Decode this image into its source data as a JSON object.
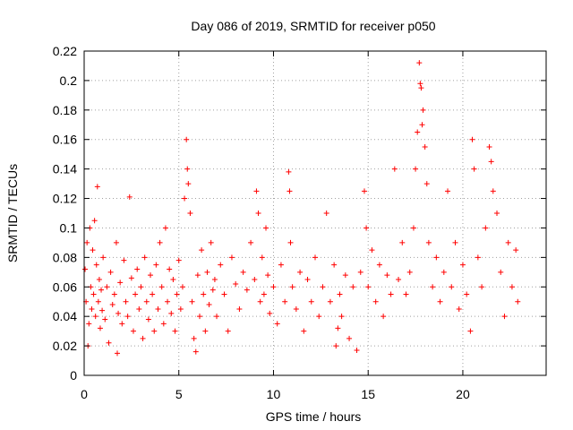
{
  "chart_data": {
    "type": "scatter",
    "title": "Day 086 of 2019, SRMTID for receiver p050",
    "xlabel": "GPS time / hours",
    "ylabel": "SRMTID / TECUs",
    "xlim": [
      0,
      24.4
    ],
    "ylim": [
      0,
      0.22
    ],
    "xticks": [
      0,
      5,
      10,
      15,
      20
    ],
    "xtick_labels": [
      "0",
      "5",
      "10",
      "15",
      "20"
    ],
    "yticks": [
      0,
      0.02,
      0.04,
      0.06,
      0.08,
      0.1,
      0.12,
      0.14,
      0.16,
      0.18,
      0.2,
      0.22
    ],
    "ytick_labels": [
      "0",
      "0.02",
      "0.04",
      "0.06",
      "0.08",
      "0.1",
      "0.12",
      "0.14",
      "0.16",
      "0.18",
      "0.2",
      "0.22"
    ],
    "grid": true,
    "marker": "plus",
    "color": "#ff0000",
    "series": [
      {
        "name": "SRMTID",
        "points": [
          [
            0.05,
            0.072
          ],
          [
            0.1,
            0.05
          ],
          [
            0.15,
            0.09
          ],
          [
            0.2,
            0.02
          ],
          [
            0.25,
            0.035
          ],
          [
            0.3,
            0.1
          ],
          [
            0.35,
            0.06
          ],
          [
            0.4,
            0.045
          ],
          [
            0.45,
            0.085
          ],
          [
            0.5,
            0.055
          ],
          [
            0.55,
            0.105
          ],
          [
            0.6,
            0.04
          ],
          [
            0.65,
            0.075
          ],
          [
            0.7,
            0.128
          ],
          [
            0.75,
            0.05
          ],
          [
            0.8,
            0.065
          ],
          [
            0.85,
            0.032
          ],
          [
            0.9,
            0.058
          ],
          [
            0.95,
            0.044
          ],
          [
            1.0,
            0.08
          ],
          [
            1.1,
            0.038
          ],
          [
            1.2,
            0.06
          ],
          [
            1.3,
            0.022
          ],
          [
            1.4,
            0.07
          ],
          [
            1.5,
            0.048
          ],
          [
            1.6,
            0.055
          ],
          [
            1.7,
            0.09
          ],
          [
            1.75,
            0.015
          ],
          [
            1.8,
            0.042
          ],
          [
            1.9,
            0.063
          ],
          [
            2.0,
            0.035
          ],
          [
            2.1,
            0.078
          ],
          [
            2.2,
            0.05
          ],
          [
            2.3,
            0.04
          ],
          [
            2.4,
            0.121
          ],
          [
            2.5,
            0.066
          ],
          [
            2.6,
            0.03
          ],
          [
            2.7,
            0.055
          ],
          [
            2.8,
            0.072
          ],
          [
            2.9,
            0.045
          ],
          [
            3.0,
            0.06
          ],
          [
            3.1,
            0.025
          ],
          [
            3.2,
            0.08
          ],
          [
            3.3,
            0.05
          ],
          [
            3.4,
            0.038
          ],
          [
            3.5,
            0.068
          ],
          [
            3.6,
            0.055
          ],
          [
            3.7,
            0.03
          ],
          [
            3.8,
            0.075
          ],
          [
            3.9,
            0.045
          ],
          [
            4.0,
            0.09
          ],
          [
            4.1,
            0.06
          ],
          [
            4.2,
            0.035
          ],
          [
            4.3,
            0.1
          ],
          [
            4.4,
            0.05
          ],
          [
            4.5,
            0.072
          ],
          [
            4.6,
            0.042
          ],
          [
            4.7,
            0.065
          ],
          [
            4.8,
            0.03
          ],
          [
            4.9,
            0.055
          ],
          [
            5.0,
            0.078
          ],
          [
            5.1,
            0.045
          ],
          [
            5.2,
            0.06
          ],
          [
            5.3,
            0.12
          ],
          [
            5.4,
            0.16
          ],
          [
            5.45,
            0.14
          ],
          [
            5.5,
            0.13
          ],
          [
            5.6,
            0.11
          ],
          [
            5.7,
            0.05
          ],
          [
            5.8,
            0.025
          ],
          [
            5.9,
            0.016
          ],
          [
            6.0,
            0.068
          ],
          [
            6.1,
            0.04
          ],
          [
            6.2,
            0.085
          ],
          [
            6.3,
            0.055
          ],
          [
            6.4,
            0.03
          ],
          [
            6.5,
            0.07
          ],
          [
            6.6,
            0.048
          ],
          [
            6.7,
            0.09
          ],
          [
            6.8,
            0.058
          ],
          [
            6.9,
            0.065
          ],
          [
            7.0,
            0.04
          ],
          [
            7.2,
            0.075
          ],
          [
            7.4,
            0.055
          ],
          [
            7.6,
            0.03
          ],
          [
            7.8,
            0.08
          ],
          [
            8.0,
            0.062
          ],
          [
            8.2,
            0.045
          ],
          [
            8.4,
            0.07
          ],
          [
            8.6,
            0.058
          ],
          [
            8.8,
            0.09
          ],
          [
            9.0,
            0.065
          ],
          [
            9.1,
            0.125
          ],
          [
            9.2,
            0.11
          ],
          [
            9.3,
            0.05
          ],
          [
            9.4,
            0.08
          ],
          [
            9.5,
            0.055
          ],
          [
            9.6,
            0.1
          ],
          [
            9.7,
            0.068
          ],
          [
            9.8,
            0.042
          ],
          [
            10.0,
            0.06
          ],
          [
            10.2,
            0.035
          ],
          [
            10.4,
            0.075
          ],
          [
            10.6,
            0.05
          ],
          [
            10.8,
            0.138
          ],
          [
            10.85,
            0.125
          ],
          [
            10.9,
            0.09
          ],
          [
            11.0,
            0.06
          ],
          [
            11.2,
            0.045
          ],
          [
            11.4,
            0.07
          ],
          [
            11.6,
            0.03
          ],
          [
            11.8,
            0.065
          ],
          [
            12.0,
            0.05
          ],
          [
            12.2,
            0.08
          ],
          [
            12.4,
            0.04
          ],
          [
            12.6,
            0.06
          ],
          [
            12.8,
            0.11
          ],
          [
            13.0,
            0.05
          ],
          [
            13.2,
            0.075
          ],
          [
            13.3,
            0.02
          ],
          [
            13.4,
            0.032
          ],
          [
            13.5,
            0.055
          ],
          [
            13.6,
            0.04
          ],
          [
            13.8,
            0.068
          ],
          [
            14.0,
            0.025
          ],
          [
            14.2,
            0.06
          ],
          [
            14.4,
            0.017
          ],
          [
            14.6,
            0.07
          ],
          [
            14.8,
            0.125
          ],
          [
            14.9,
            0.1
          ],
          [
            15.0,
            0.06
          ],
          [
            15.2,
            0.085
          ],
          [
            15.4,
            0.05
          ],
          [
            15.6,
            0.075
          ],
          [
            15.8,
            0.04
          ],
          [
            16.0,
            0.068
          ],
          [
            16.2,
            0.055
          ],
          [
            16.4,
            0.14
          ],
          [
            16.6,
            0.065
          ],
          [
            16.8,
            0.09
          ],
          [
            17.0,
            0.055
          ],
          [
            17.2,
            0.07
          ],
          [
            17.4,
            0.1
          ],
          [
            17.5,
            0.14
          ],
          [
            17.6,
            0.165
          ],
          [
            17.7,
            0.212
          ],
          [
            17.75,
            0.198
          ],
          [
            17.8,
            0.195
          ],
          [
            17.85,
            0.17
          ],
          [
            17.9,
            0.18
          ],
          [
            18.0,
            0.155
          ],
          [
            18.1,
            0.13
          ],
          [
            18.2,
            0.09
          ],
          [
            18.4,
            0.06
          ],
          [
            18.6,
            0.08
          ],
          [
            18.8,
            0.05
          ],
          [
            19.0,
            0.07
          ],
          [
            19.2,
            0.125
          ],
          [
            19.4,
            0.06
          ],
          [
            19.6,
            0.09
          ],
          [
            19.8,
            0.045
          ],
          [
            20.0,
            0.075
          ],
          [
            20.2,
            0.055
          ],
          [
            20.4,
            0.03
          ],
          [
            20.5,
            0.16
          ],
          [
            20.6,
            0.14
          ],
          [
            20.8,
            0.08
          ],
          [
            21.0,
            0.06
          ],
          [
            21.2,
            0.1
          ],
          [
            21.4,
            0.155
          ],
          [
            21.5,
            0.145
          ],
          [
            21.6,
            0.125
          ],
          [
            21.8,
            0.11
          ],
          [
            22.0,
            0.07
          ],
          [
            22.2,
            0.04
          ],
          [
            22.4,
            0.09
          ],
          [
            22.6,
            0.06
          ],
          [
            22.8,
            0.085
          ],
          [
            22.9,
            0.05
          ]
        ]
      }
    ]
  }
}
